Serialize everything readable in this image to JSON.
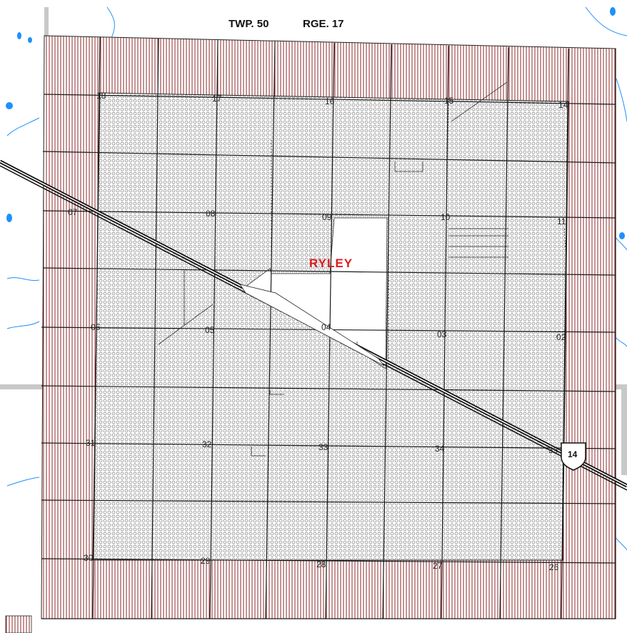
{
  "map": {
    "title_township": "TWP. 50",
    "title_range": "RGE. 17",
    "town_label": "RYLEY",
    "highway_number": "14",
    "section_labels": {
      "s18": "18",
      "s17": "17",
      "s16": "16",
      "s15": "15",
      "s14": "14",
      "s07": "07",
      "s08": "08",
      "s09": "09",
      "s10": "10",
      "s11": "11",
      "s06": "06",
      "s05": "05",
      "s04": "04",
      "s03": "03",
      "s02": "02",
      "s31": "31",
      "s32": "32",
      "s33": "33",
      "s34": "34",
      "s35": "35",
      "s30": "30",
      "s29": "29",
      "s28": "28",
      "s27": "27",
      "s26": "26"
    },
    "colors": {
      "hatch": "#8b2a2a",
      "dot_pattern": "#7a7a7a",
      "water": "#1e90ff",
      "road_grey": "#c8c8c8",
      "town_label": "#e0191e"
    }
  }
}
